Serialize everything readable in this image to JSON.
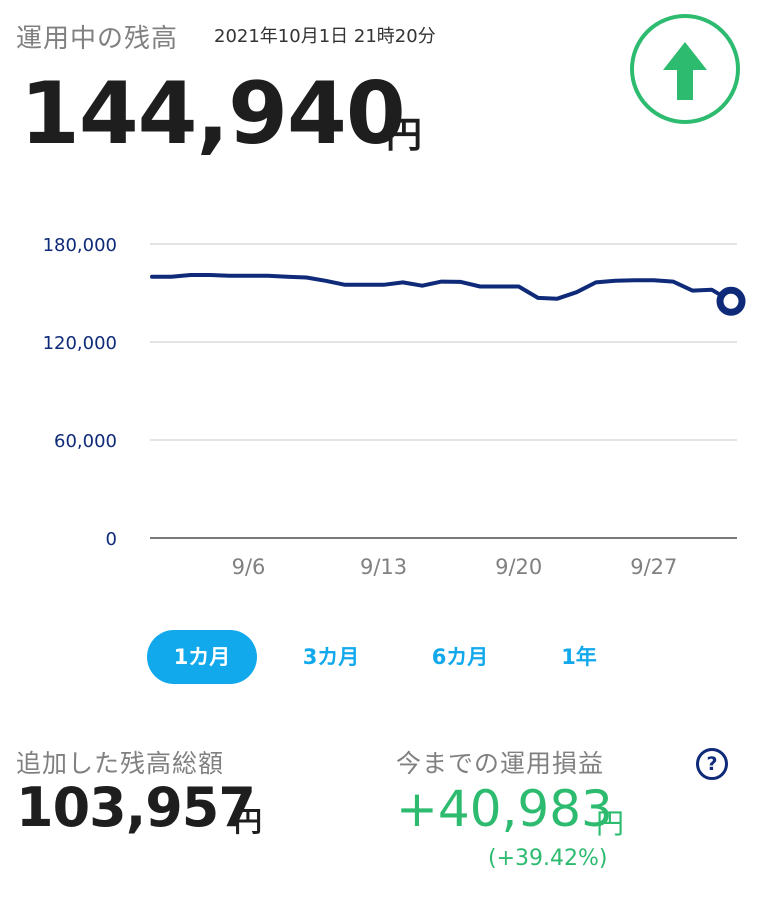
{
  "header": {
    "title": "運用中の残高",
    "timestamp": "2021年10月1日 21時20分",
    "balance": "144,940",
    "balance_unit": "円",
    "trend_icon": "arrow-up-icon"
  },
  "chart_data": {
    "type": "line",
    "y_ticks": [
      "180,000",
      "120,000",
      "60,000",
      "0"
    ],
    "x_ticks": [
      "9/6",
      "9/13",
      "9/20",
      "9/27"
    ],
    "ylim": [
      0,
      180000
    ],
    "grid": true,
    "series": [
      {
        "x": [
          "9/1",
          "9/2",
          "9/3",
          "9/4",
          "9/5",
          "9/6",
          "9/7",
          "9/8",
          "9/9",
          "9/10",
          "9/11",
          "9/12",
          "9/13",
          "9/14",
          "9/15",
          "9/16",
          "9/17",
          "9/18",
          "9/19",
          "9/20",
          "9/21",
          "9/22",
          "9/23",
          "9/24",
          "9/25",
          "9/26",
          "9/27",
          "9/28",
          "9/29",
          "9/30",
          "10/1"
        ],
        "values": [
          160000,
          160000,
          161000,
          161000,
          160500,
          160500,
          160500,
          160000,
          159500,
          157500,
          155000,
          155000,
          155000,
          156500,
          154500,
          157000,
          156800,
          154000,
          154000,
          154000,
          147000,
          146500,
          150500,
          156500,
          157500,
          157800,
          157800,
          157000,
          151500,
          152000,
          144940
        ]
      }
    ],
    "line_color": "#0e2a78",
    "grid_color": "#dcdcdc",
    "axis_color": "#7a7a7a"
  },
  "tabs": [
    {
      "label": "1カ月",
      "active": true
    },
    {
      "label": "3カ月",
      "active": false
    },
    {
      "label": "6カ月",
      "active": false
    },
    {
      "label": "1年",
      "active": false
    }
  ],
  "summary": {
    "added_label": "追加した残高総額",
    "added_value": "103,957",
    "added_unit": "円",
    "profit_label": "今までの運用損益",
    "profit_value": "+40,983",
    "profit_unit": "円",
    "profit_pct": "(+39.42%)",
    "help_symbol": "?"
  },
  "colors": {
    "accent": "#12a9ec",
    "positive": "#2dbb6f",
    "navy": "#0e2a78"
  }
}
